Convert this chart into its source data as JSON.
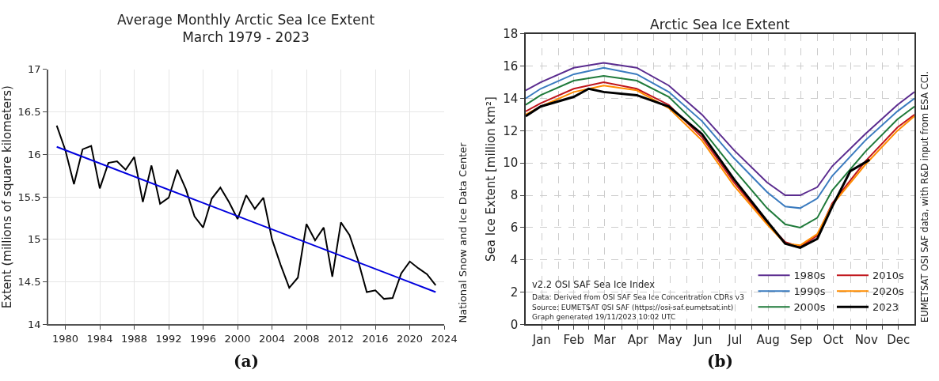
{
  "chart_data": [
    {
      "type": "line",
      "title": "Average Monthly Arctic Sea Ice Extent\nMarch 1979 - 2023",
      "ylabel": "Extent (millions of square kilometers)",
      "x": [
        1979,
        1980,
        1981,
        1982,
        1983,
        1984,
        1985,
        1986,
        1987,
        1988,
        1989,
        1990,
        1991,
        1992,
        1993,
        1994,
        1995,
        1996,
        1997,
        1998,
        1999,
        2000,
        2001,
        2002,
        2003,
        2004,
        2005,
        2006,
        2007,
        2008,
        2009,
        2010,
        2011,
        2012,
        2013,
        2014,
        2015,
        2016,
        2017,
        2018,
        2019,
        2020,
        2021,
        2022,
        2023
      ],
      "series": [
        {
          "color": "#000000",
          "values": [
            16.34,
            16.05,
            15.65,
            16.06,
            16.1,
            15.6,
            15.9,
            15.92,
            15.82,
            15.97,
            15.44,
            15.87,
            15.42,
            15.49,
            15.82,
            15.59,
            15.27,
            15.14,
            15.48,
            15.61,
            15.44,
            15.24,
            15.52,
            15.36,
            15.49,
            15.0,
            14.7,
            14.43,
            14.55,
            15.18,
            14.99,
            15.14,
            14.56,
            15.2,
            15.05,
            14.75,
            14.38,
            14.4,
            14.3,
            14.31,
            14.6,
            14.74,
            14.66,
            14.59,
            14.46
          ]
        },
        {
          "type": "line",
          "color": "#0000dd",
          "x": [
            1979,
            2023
          ],
          "values": [
            16.09,
            14.38
          ]
        }
      ],
      "xlim": [
        1978,
        2024
      ],
      "xticks": [
        1980,
        1984,
        1988,
        1992,
        1996,
        2000,
        2004,
        2008,
        2012,
        2016,
        2020,
        2024
      ],
      "ylim": [
        14,
        17
      ],
      "yticks": [
        14,
        14.5,
        15,
        15.5,
        16,
        16.5,
        17
      ],
      "grid": true,
      "legend": false,
      "annotations": [
        "National Snow and Ice Data Center",
        "(a)"
      ]
    },
    {
      "type": "line",
      "title": "Arctic Sea Ice Extent",
      "ylabel": "Sea Ice Extent [million km²]",
      "x": [
        "--01-01",
        "--01-15",
        "--02-15",
        "--03-15",
        "--04-15",
        "--05-15",
        "--06-15",
        "--07-15",
        "--08-15",
        "--09-01",
        "--09-15",
        "--10-01",
        "--10-15",
        "--11-15",
        "--12-15",
        "--12-31"
      ],
      "series": [
        {
          "name": "1980s",
          "color": "#5b2c8f",
          "values": [
            14.5,
            15.0,
            15.9,
            16.2,
            15.9,
            14.8,
            13.0,
            10.8,
            8.8,
            8.0,
            8.0,
            8.5,
            9.8,
            11.8,
            13.6,
            14.4
          ]
        },
        {
          "name": "1990s",
          "color": "#3a7bbf",
          "values": [
            14.0,
            14.6,
            15.5,
            15.9,
            15.5,
            14.4,
            12.6,
            10.3,
            8.2,
            7.3,
            7.2,
            7.8,
            9.2,
            11.4,
            13.2,
            14.0
          ]
        },
        {
          "name": "2000s",
          "color": "#1f7a3a",
          "values": [
            13.6,
            14.2,
            15.1,
            15.4,
            15.1,
            14.1,
            12.1,
            9.6,
            7.2,
            6.2,
            6.0,
            6.6,
            8.3,
            10.7,
            12.7,
            13.5
          ]
        },
        {
          "name": "2010s",
          "color": "#c0151b",
          "values": [
            13.2,
            13.7,
            14.6,
            15.0,
            14.6,
            13.6,
            11.6,
            8.8,
            6.3,
            5.1,
            4.8,
            5.5,
            7.5,
            10.1,
            12.2,
            13.0
          ]
        },
        {
          "name": "2020s",
          "color": "#ff8c00",
          "values": [
            13.0,
            13.5,
            14.4,
            14.8,
            14.5,
            13.4,
            11.4,
            8.6,
            6.2,
            5.0,
            4.9,
            5.6,
            7.4,
            9.9,
            12.0,
            12.9
          ]
        },
        {
          "name": "2023",
          "color": "#000000",
          "x": [
            "--01-01",
            "--01-15",
            "--02-15",
            "--03-01",
            "--03-15",
            "--04-15",
            "--05-15",
            "--06-15",
            "--07-15",
            "--08-15",
            "--09-01",
            "--09-15",
            "--10-01",
            "--10-15",
            "--11-01",
            "--11-19"
          ],
          "values": [
            12.9,
            13.5,
            14.1,
            14.6,
            14.4,
            14.2,
            13.5,
            11.8,
            9.0,
            6.4,
            5.0,
            4.75,
            5.3,
            7.3,
            9.5,
            10.2
          ]
        }
      ],
      "xlim": [
        "--01-01",
        "--12-31"
      ],
      "xticks": [
        {
          "value": "--01-16",
          "label": "Jan"
        },
        {
          "value": "--02-01",
          "label": null
        },
        {
          "value": "--02-15",
          "label": "Feb"
        },
        {
          "value": "--03-01",
          "label": null
        },
        {
          "value": "--03-16",
          "label": "Mar"
        },
        {
          "value": "--04-01",
          "label": null
        },
        {
          "value": "--04-16",
          "label": "Apr"
        },
        {
          "value": "--05-01",
          "label": null
        },
        {
          "value": "--05-16",
          "label": "May"
        },
        {
          "value": "--06-01",
          "label": null
        },
        {
          "value": "--06-16",
          "label": "Jun"
        },
        {
          "value": "--07-01",
          "label": null
        },
        {
          "value": "--07-16",
          "label": "Jul"
        },
        {
          "value": "--08-01",
          "label": null
        },
        {
          "value": "--08-16",
          "label": "Aug"
        },
        {
          "value": "--09-01",
          "label": null
        },
        {
          "value": "--09-16",
          "label": "Sep"
        },
        {
          "value": "--10-01",
          "label": null
        },
        {
          "value": "--10-16",
          "label": "Oct"
        },
        {
          "value": "--11-01",
          "label": null
        },
        {
          "value": "--11-16",
          "label": "Nov"
        },
        {
          "value": "--12-01",
          "label": null
        },
        {
          "value": "--12-16",
          "label": "Dec"
        }
      ],
      "ylim": [
        0,
        18
      ],
      "yticks": [
        0,
        2,
        4,
        6,
        8,
        10,
        12,
        14,
        16,
        18
      ],
      "grid": true,
      "legend": "bottom right",
      "annotations": [
        "v2.2 OSI SAF Sea Ice Index",
        "Data: Derived from OSI SAF Sea Ice Concentration CDRs v3",
        "Source: EUMETSAT OSI SAF (https://osi-saf.eumetsat.int)",
        "Graph generated 19/11/2023 10:02 UTC",
        "EUMETSAT OSI SAF data, with R&D input from ESA CCI.",
        "(b)"
      ]
    }
  ]
}
